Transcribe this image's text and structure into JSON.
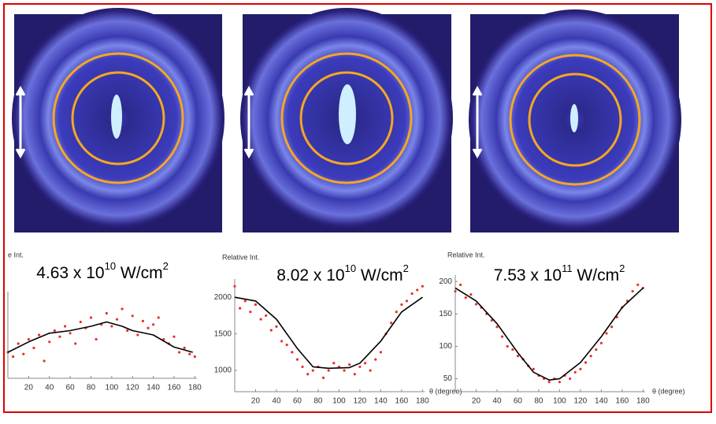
{
  "chart_data": [
    {
      "type": "scatter",
      "title_parts": [
        "4.63 x 10",
        "10",
        " W/cm",
        "2"
      ],
      "y_label": "e Int.",
      "xlim": [
        0,
        182
      ],
      "ylim": [
        0,
        100
      ],
      "xticks": [
        20,
        40,
        60,
        80,
        100,
        120,
        140,
        160,
        180
      ],
      "series": [
        {
          "type": "scatter",
          "color": "#e8302a",
          "x": [
            0,
            5,
            10,
            15,
            20,
            25,
            30,
            35,
            40,
            45,
            50,
            55,
            60,
            65,
            70,
            75,
            80,
            85,
            90,
            95,
            100,
            105,
            110,
            115,
            120,
            125,
            130,
            135,
            140,
            145,
            150,
            155,
            160,
            165,
            170,
            175,
            180
          ],
          "values": [
            30,
            25,
            40,
            28,
            45,
            35,
            50,
            20,
            42,
            55,
            48,
            60,
            52,
            40,
            65,
            58,
            70,
            45,
            62,
            75,
            60,
            68,
            80,
            55,
            72,
            50,
            66,
            58,
            62,
            70,
            45,
            40,
            48,
            30,
            35,
            28,
            25
          ]
        },
        {
          "type": "line",
          "color": "#000000",
          "x": [
            0,
            20,
            40,
            60,
            80,
            95,
            110,
            120,
            140,
            160,
            178
          ],
          "values": [
            30,
            42,
            52,
            55,
            60,
            65,
            60,
            55,
            50,
            36,
            30
          ]
        }
      ]
    },
    {
      "type": "scatter",
      "title_parts": [
        "8.02 x 10",
        "10",
        " W/cm",
        "2"
      ],
      "y_label": "Relative Int.",
      "x_label": "θ (degree)",
      "xlim": [
        0,
        182
      ],
      "ylim": [
        710,
        2250
      ],
      "xticks": [
        20,
        40,
        60,
        80,
        100,
        120,
        140,
        160,
        180
      ],
      "yticks": [
        1000,
        1500,
        2000
      ],
      "series": [
        {
          "type": "scatter",
          "color": "#e8302a",
          "x": [
            0,
            5,
            10,
            15,
            20,
            25,
            30,
            35,
            40,
            45,
            50,
            55,
            60,
            65,
            70,
            75,
            80,
            85,
            90,
            95,
            100,
            105,
            110,
            115,
            120,
            125,
            130,
            135,
            140,
            145,
            150,
            155,
            160,
            165,
            170,
            175,
            180
          ],
          "values": [
            2150,
            1850,
            1950,
            1800,
            1900,
            1700,
            1750,
            1550,
            1600,
            1400,
            1350,
            1250,
            1150,
            1050,
            950,
            1000,
            1050,
            900,
            1000,
            1100,
            1050,
            1000,
            1080,
            950,
            1050,
            1100,
            1000,
            1150,
            1250,
            1500,
            1650,
            1800,
            1900,
            1950,
            2050,
            2100,
            2150
          ]
        },
        {
          "type": "line",
          "color": "#000000",
          "x": [
            0,
            20,
            40,
            60,
            75,
            90,
            110,
            120,
            140,
            160,
            180
          ],
          "values": [
            2000,
            1950,
            1700,
            1300,
            1050,
            1030,
            1040,
            1100,
            1400,
            1800,
            2000
          ]
        }
      ]
    },
    {
      "type": "scatter",
      "title_parts": [
        "7.53 x 10",
        "11",
        " W/cm",
        "2"
      ],
      "y_label": "Relative Int.",
      "x_label": "θ (degree)",
      "xlim": [
        0,
        182
      ],
      "ylim": [
        30,
        210
      ],
      "xticks": [
        20,
        40,
        60,
        80,
        100,
        120,
        140,
        160,
        180
      ],
      "yticks": [
        50,
        100,
        150,
        200
      ],
      "series": [
        {
          "type": "scatter",
          "color": "#e8302a",
          "x": [
            0,
            5,
            10,
            15,
            20,
            25,
            30,
            35,
            40,
            45,
            50,
            55,
            60,
            65,
            70,
            75,
            80,
            85,
            90,
            95,
            100,
            105,
            110,
            115,
            120,
            125,
            130,
            135,
            140,
            145,
            150,
            155,
            160,
            165,
            170,
            175,
            180
          ],
          "values": [
            185,
            195,
            175,
            180,
            165,
            160,
            150,
            140,
            130,
            115,
            100,
            95,
            85,
            80,
            70,
            65,
            55,
            50,
            45,
            50,
            45,
            55,
            50,
            60,
            65,
            75,
            85,
            95,
            105,
            120,
            130,
            145,
            160,
            170,
            185,
            195,
            190
          ]
        },
        {
          "type": "line",
          "color": "#000000",
          "x": [
            0,
            20,
            40,
            60,
            75,
            90,
            100,
            120,
            140,
            160,
            180
          ],
          "values": [
            190,
            170,
            135,
            90,
            60,
            48,
            50,
            75,
            115,
            160,
            190
          ]
        }
      ]
    }
  ]
}
